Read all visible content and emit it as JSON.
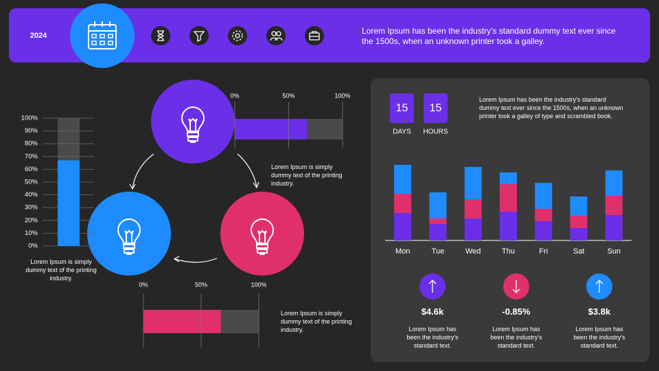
{
  "header": {
    "year": "2024",
    "text": "Lorem Ipsum has been the industry's standard dummy text ever since the 1500s, when an unknown printer took a galley."
  },
  "notes": [
    "Lorem Ipsum is simply dummy text of the printing industry.",
    "Lorem Ipsum is simply dummy text of the printing industry.",
    "Lorem Ipsum is simply dummy text of the printing industry."
  ],
  "countdown": {
    "items": [
      {
        "value": 15,
        "label": "DAYS"
      },
      {
        "value": 15,
        "label": "HOURS"
      }
    ],
    "text": "Lorem Ipsum has been the industry's standard dummy text ever since the 1500s, when an unknown printer took a galley of type and scrambled book."
  },
  "kpis": [
    {
      "value": "$4.6k",
      "text": "Lorem Ipsum has been the industry's standard text."
    },
    {
      "value": "-0.85%",
      "text": "Lorem Ipsum has been the industry's standard text."
    },
    {
      "value": "$3.8k",
      "text": "Lorem Ipsum has been the industry's standard text."
    }
  ],
  "chart_data": [
    {
      "type": "bar",
      "orientation": "vertical",
      "categories": [
        null
      ],
      "values": [
        67
      ],
      "color": "#1e8bff",
      "ylim": [
        0,
        100
      ],
      "grid": true,
      "yticks": [
        {
          "value": 0,
          "label": "0%"
        },
        {
          "value": 10,
          "label": "10%"
        },
        {
          "value": 20,
          "label": "20%"
        },
        {
          "value": 30,
          "label": "30%"
        },
        {
          "value": 40,
          "label": "40%"
        },
        {
          "value": 50,
          "label": "50%"
        },
        {
          "value": 60,
          "label": "60%"
        },
        {
          "value": 70,
          "label": "70%"
        },
        {
          "value": 80,
          "label": "80%"
        },
        {
          "value": 90,
          "label": "90%"
        },
        {
          "value": 100,
          "label": "100%"
        }
      ]
    },
    {
      "type": "bar",
      "orientation": "horizontal",
      "categories": [
        null
      ],
      "values": [
        67
      ],
      "color": "#6b2fe8",
      "xlim": [
        0,
        100
      ],
      "grid": true,
      "xticks": [
        {
          "value": 0,
          "label": "0%"
        },
        {
          "value": 50,
          "label": "50%"
        },
        {
          "value": 100,
          "label": "100%"
        }
      ]
    },
    {
      "type": "bar",
      "orientation": "horizontal",
      "categories": [
        null
      ],
      "values": [
        67
      ],
      "color": "#e0306c",
      "xlim": [
        0,
        100
      ],
      "grid": true,
      "xticks": [
        {
          "value": 0,
          "label": "0%"
        },
        {
          "value": 50,
          "label": "50%"
        },
        {
          "value": 100,
          "label": "100%"
        }
      ]
    },
    {
      "type": "bar",
      "orientation": "vertical",
      "stacked": true,
      "categories": [
        "Mon",
        "Tue",
        "Wed",
        "Thu",
        "Fri",
        "Sat",
        "Sun"
      ],
      "ylim": [
        0,
        120
      ],
      "series": [
        {
          "color": "#6b2fe8",
          "values": [
            40,
            24,
            32,
            42,
            28,
            18,
            37
          ]
        },
        {
          "color": "#e0306c",
          "values": [
            28,
            8,
            28,
            40,
            18,
            18,
            28
          ]
        },
        {
          "color": "#1e8bff",
          "values": [
            42,
            38,
            47,
            17,
            38,
            28,
            37
          ]
        }
      ]
    }
  ]
}
